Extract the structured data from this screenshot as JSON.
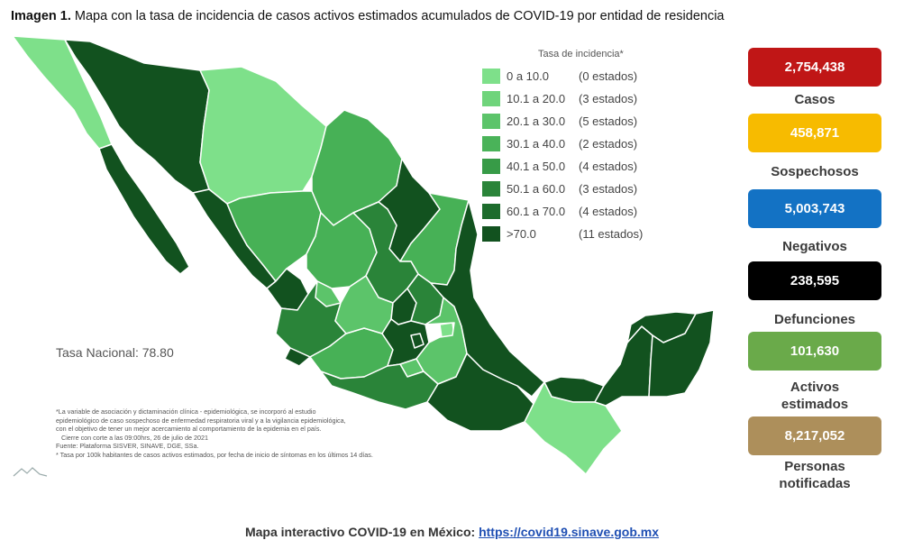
{
  "title": {
    "bold": "Imagen 1.",
    "text": " Mapa con la tasa de incidencia de casos activos estimados acumulados de COVID-19 por entidad de residencia"
  },
  "legend": {
    "title": "Tasa de incidencia*",
    "items": [
      {
        "range": "0   a  10.0",
        "count": "(0 estados)",
        "color": "#7ee08a"
      },
      {
        "range": "10.1 a  20.0",
        "count": "(3 estados)",
        "color": "#6fd47b"
      },
      {
        "range": "20.1 a  30.0",
        "count": "(5 estados)",
        "color": "#5cc46a"
      },
      {
        "range": "30.1 a  40.0",
        "count": "(2 estados)",
        "color": "#4ab359"
      },
      {
        "range": "40.1 a  50.0",
        "count": "(4 estados)",
        "color": "#379b47"
      },
      {
        "range": "50.1 a  60.0",
        "count": "(3 estados)",
        "color": "#2a8439"
      },
      {
        "range": "60.1 a  70.0",
        "count": "(4 estados)",
        "color": "#1d6c2c"
      },
      {
        "range": ">70.0",
        "count": "(11 estados)",
        "color": "#12521f"
      }
    ]
  },
  "tasa_nacional": "Tasa Nacional: 78.80",
  "footnote": {
    "line1": "*La variable de asociación y dictaminación clínica - epidemiológica, se incorporó al estudio",
    "line2": "epidemiológico de caso sospechoso de enfermedad respiratoria viral y a la vigilancia epidemiológica,",
    "line3": "con el objetivo de tener un mejor acercamiento al comportamiento de la epidemia en el país.",
    "line4": "Cierre con corte a las 09:00hrs, 26 de julio de 2021",
    "line5": "Fuente: Plataforma SISVER, SINAVE, DGE, SSa.",
    "line6": "* Tasa por 100k habitantes de casos activos estimados, por fecha de inicio de síntomas en los últimos 14 días."
  },
  "stats": [
    {
      "value": "2,754,438",
      "label": "Casos",
      "color": "#c01616"
    },
    {
      "value": "458,871",
      "label": "Sospechosos",
      "color": "#f7bb00"
    },
    {
      "value": "5,003,743",
      "label": "Negativos",
      "color": "#1372c4"
    },
    {
      "value": "238,595",
      "label": "Defunciones",
      "color": "#000000"
    },
    {
      "value": "101,630",
      "label": "Activos estimados",
      "color": "#6aaa4a"
    },
    {
      "value": "8,217,052",
      "label": "Personas notificadas",
      "color": "#ad8f5b"
    }
  ],
  "bottom": {
    "text": "Mapa interactivo COVID-19 en México: ",
    "url": "https://covid19.sinave.gob.mx"
  },
  "map_colors": {
    "light": "#7ee08a",
    "lightmid": "#5cc46a",
    "mid": "#47b156",
    "darkmid": "#2a8439",
    "dark": "#12521f",
    "border": "#ffffff"
  }
}
